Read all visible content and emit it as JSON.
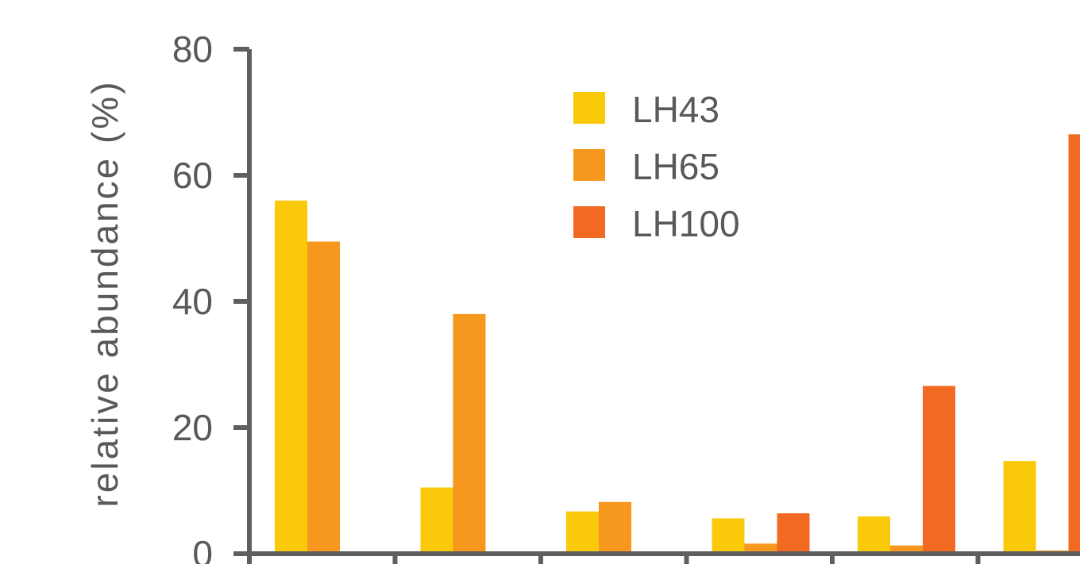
{
  "chart_data": {
    "type": "bar",
    "title": "",
    "xlabel": "",
    "ylabel": "relative abundance (%)",
    "ylim": [
      0,
      80
    ],
    "yticks": [
      0,
      20,
      40,
      60,
      80
    ],
    "categories": [
      "",
      "",
      "",
      "",
      "",
      ""
    ],
    "grid": false,
    "legend_position": "top-center",
    "series": [
      {
        "name": "LH43",
        "color": "#FACA0A",
        "values": [
          56,
          10.5,
          6.7,
          5.6,
          5.9,
          14.7
        ]
      },
      {
        "name": "LH65",
        "color": "#F7981E",
        "values": [
          49.5,
          38,
          8.2,
          1.6,
          1.3,
          0.5
        ]
      },
      {
        "name": "LH100",
        "color": "#F26A22",
        "values": [
          0,
          0,
          0,
          6.4,
          26.6,
          66.5
        ]
      }
    ]
  }
}
